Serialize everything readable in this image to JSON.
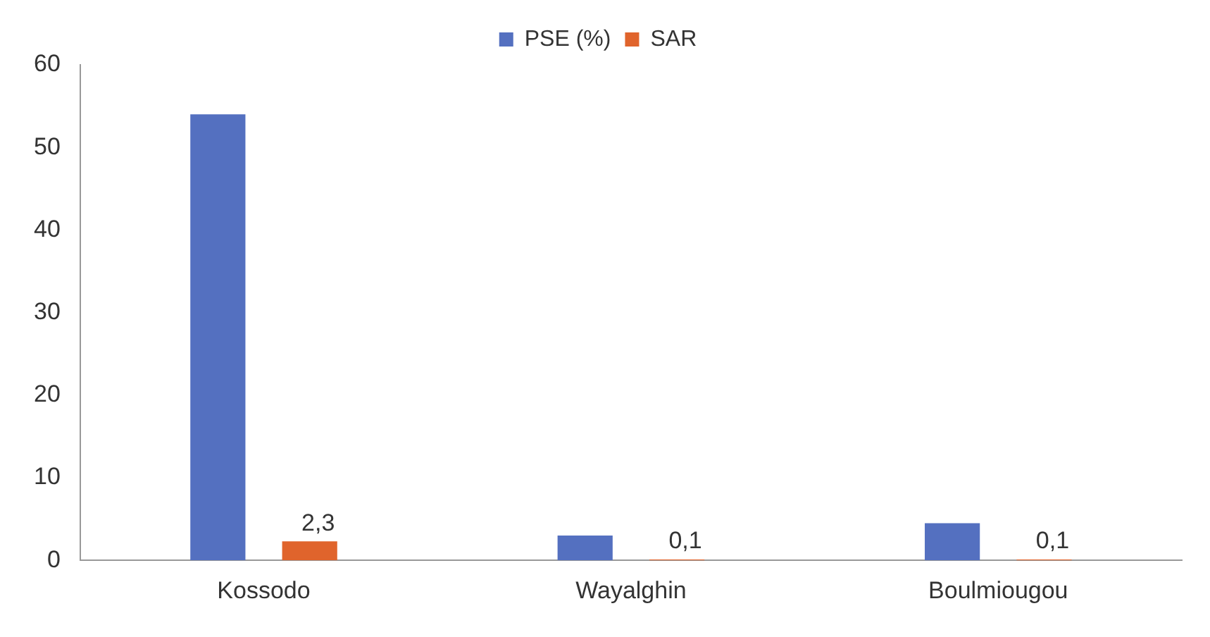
{
  "chart_data": {
    "type": "bar",
    "categories": [
      "Kossodo",
      "Wayalghin",
      "Boulmiougou"
    ],
    "series": [
      {
        "name": "PSE (%)",
        "color": "#5470c0",
        "values": [
          54,
          3,
          4.5
        ]
      },
      {
        "name": "SAR",
        "color": "#e0642c",
        "values": [
          2.3,
          0.1,
          0.1
        ],
        "value_labels": [
          "2,3",
          "0,1",
          "0,1"
        ]
      }
    ],
    "ylim": [
      0,
      60
    ],
    "yticks": [
      0,
      10,
      20,
      30,
      40,
      50,
      60
    ],
    "grid": false,
    "legend": "top"
  }
}
